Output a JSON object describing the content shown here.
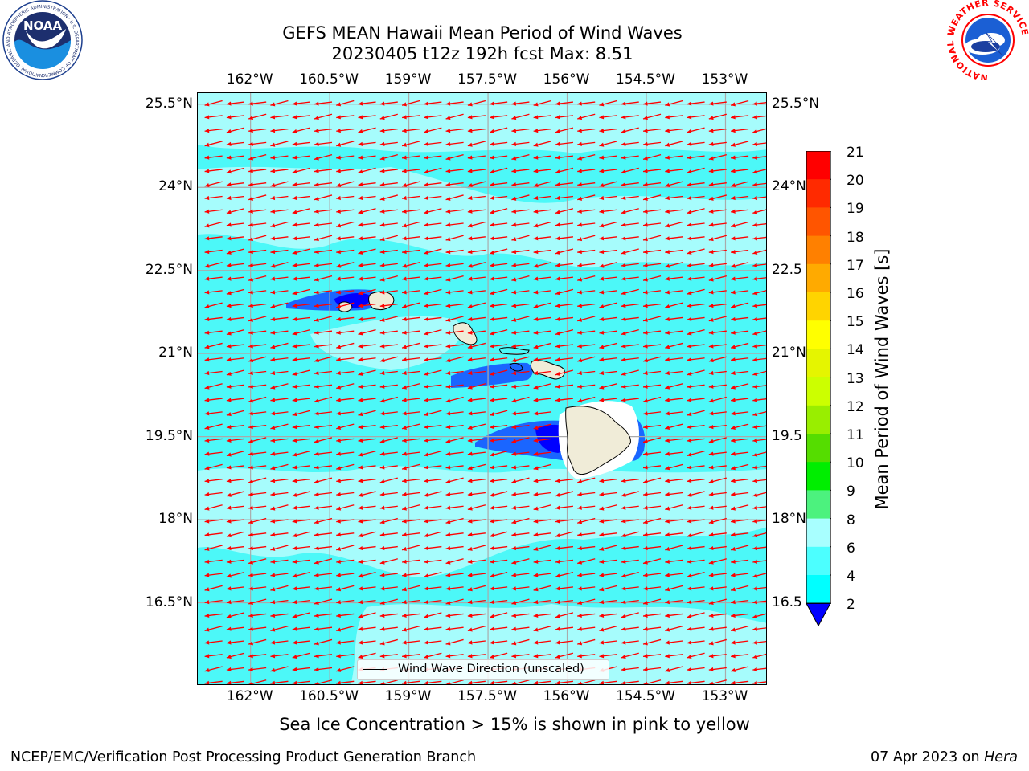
{
  "title_line1": "GEFS MEAN Hawaii Mean Period of Wind Waves",
  "title_line2": "20230405 t12z 192h fcst   Max: 8.51",
  "map": {
    "lon_ticks": [
      "162°W",
      "160.5°W",
      "159°W",
      "157.5°W",
      "156°W",
      "154.5°W",
      "153°W"
    ],
    "lon_values": [
      -162,
      -160.5,
      -159,
      -157.5,
      -156,
      -154.5,
      -153
    ],
    "lat_ticks_left": [
      "25.5°N",
      "24°N",
      "22.5°N",
      "21°N",
      "19.5°N",
      "18°N",
      "16.5°N"
    ],
    "lat_ticks_right": [
      "25.5°N",
      "24°N",
      "22.5",
      "21°N",
      "19.5",
      "18°N",
      "16.5"
    ],
    "lat_values": [
      25.5,
      24,
      22.5,
      21,
      19.5,
      18,
      16.5
    ],
    "lon_range": [
      -163,
      -152.2
    ],
    "lat_range": [
      15.0,
      25.7
    ],
    "legend_label": "Wind Wave Direction (unscaled)",
    "arrow_color": "#ff0000",
    "wind_from": "east-northeast"
  },
  "colorbar": {
    "title": "Mean Period of Wind Waves [s]",
    "labels": [
      "21",
      "20",
      "19",
      "18",
      "17",
      "16",
      "15",
      "14",
      "13",
      "12",
      "11",
      "10",
      "9",
      "8",
      "6",
      "4",
      "2"
    ],
    "colors": [
      "#ff0000",
      "#ff2a00",
      "#ff5500",
      "#ff8000",
      "#ffaa00",
      "#ffd400",
      "#ffff00",
      "#e5f500",
      "#ccff00",
      "#99ee00",
      "#55dd00",
      "#00ee00",
      "#4cf27e",
      "#a8ffff",
      "#4cffff",
      "#00ffff",
      "#0080ff",
      "#0000ff"
    ],
    "extend_min_color": "#0000ff"
  },
  "palette": {
    "ocean_light": "#a6fcfc",
    "ocean_mid": "#4cf8f8",
    "shallow_blue": "#1a66ff",
    "deep_blue": "#0000ff",
    "land": "#f0ecd8"
  },
  "note": "Sea Ice Concentration > 15% is shown in pink to yellow",
  "footer_left": "NCEP/EMC/Verification Post Processing Product Generation Branch",
  "footer_right_date": "07 Apr 2023 on ",
  "footer_right_host": "Hera",
  "logo_left": "NOAA",
  "logo_left_ring": "NATIONAL OCEANIC AND ATMOSPHERIC ADMINISTRATION · U.S. DEPARTMENT OF COMMERCE",
  "logo_right_ring": "NATIONAL WEATHER SERVICE"
}
